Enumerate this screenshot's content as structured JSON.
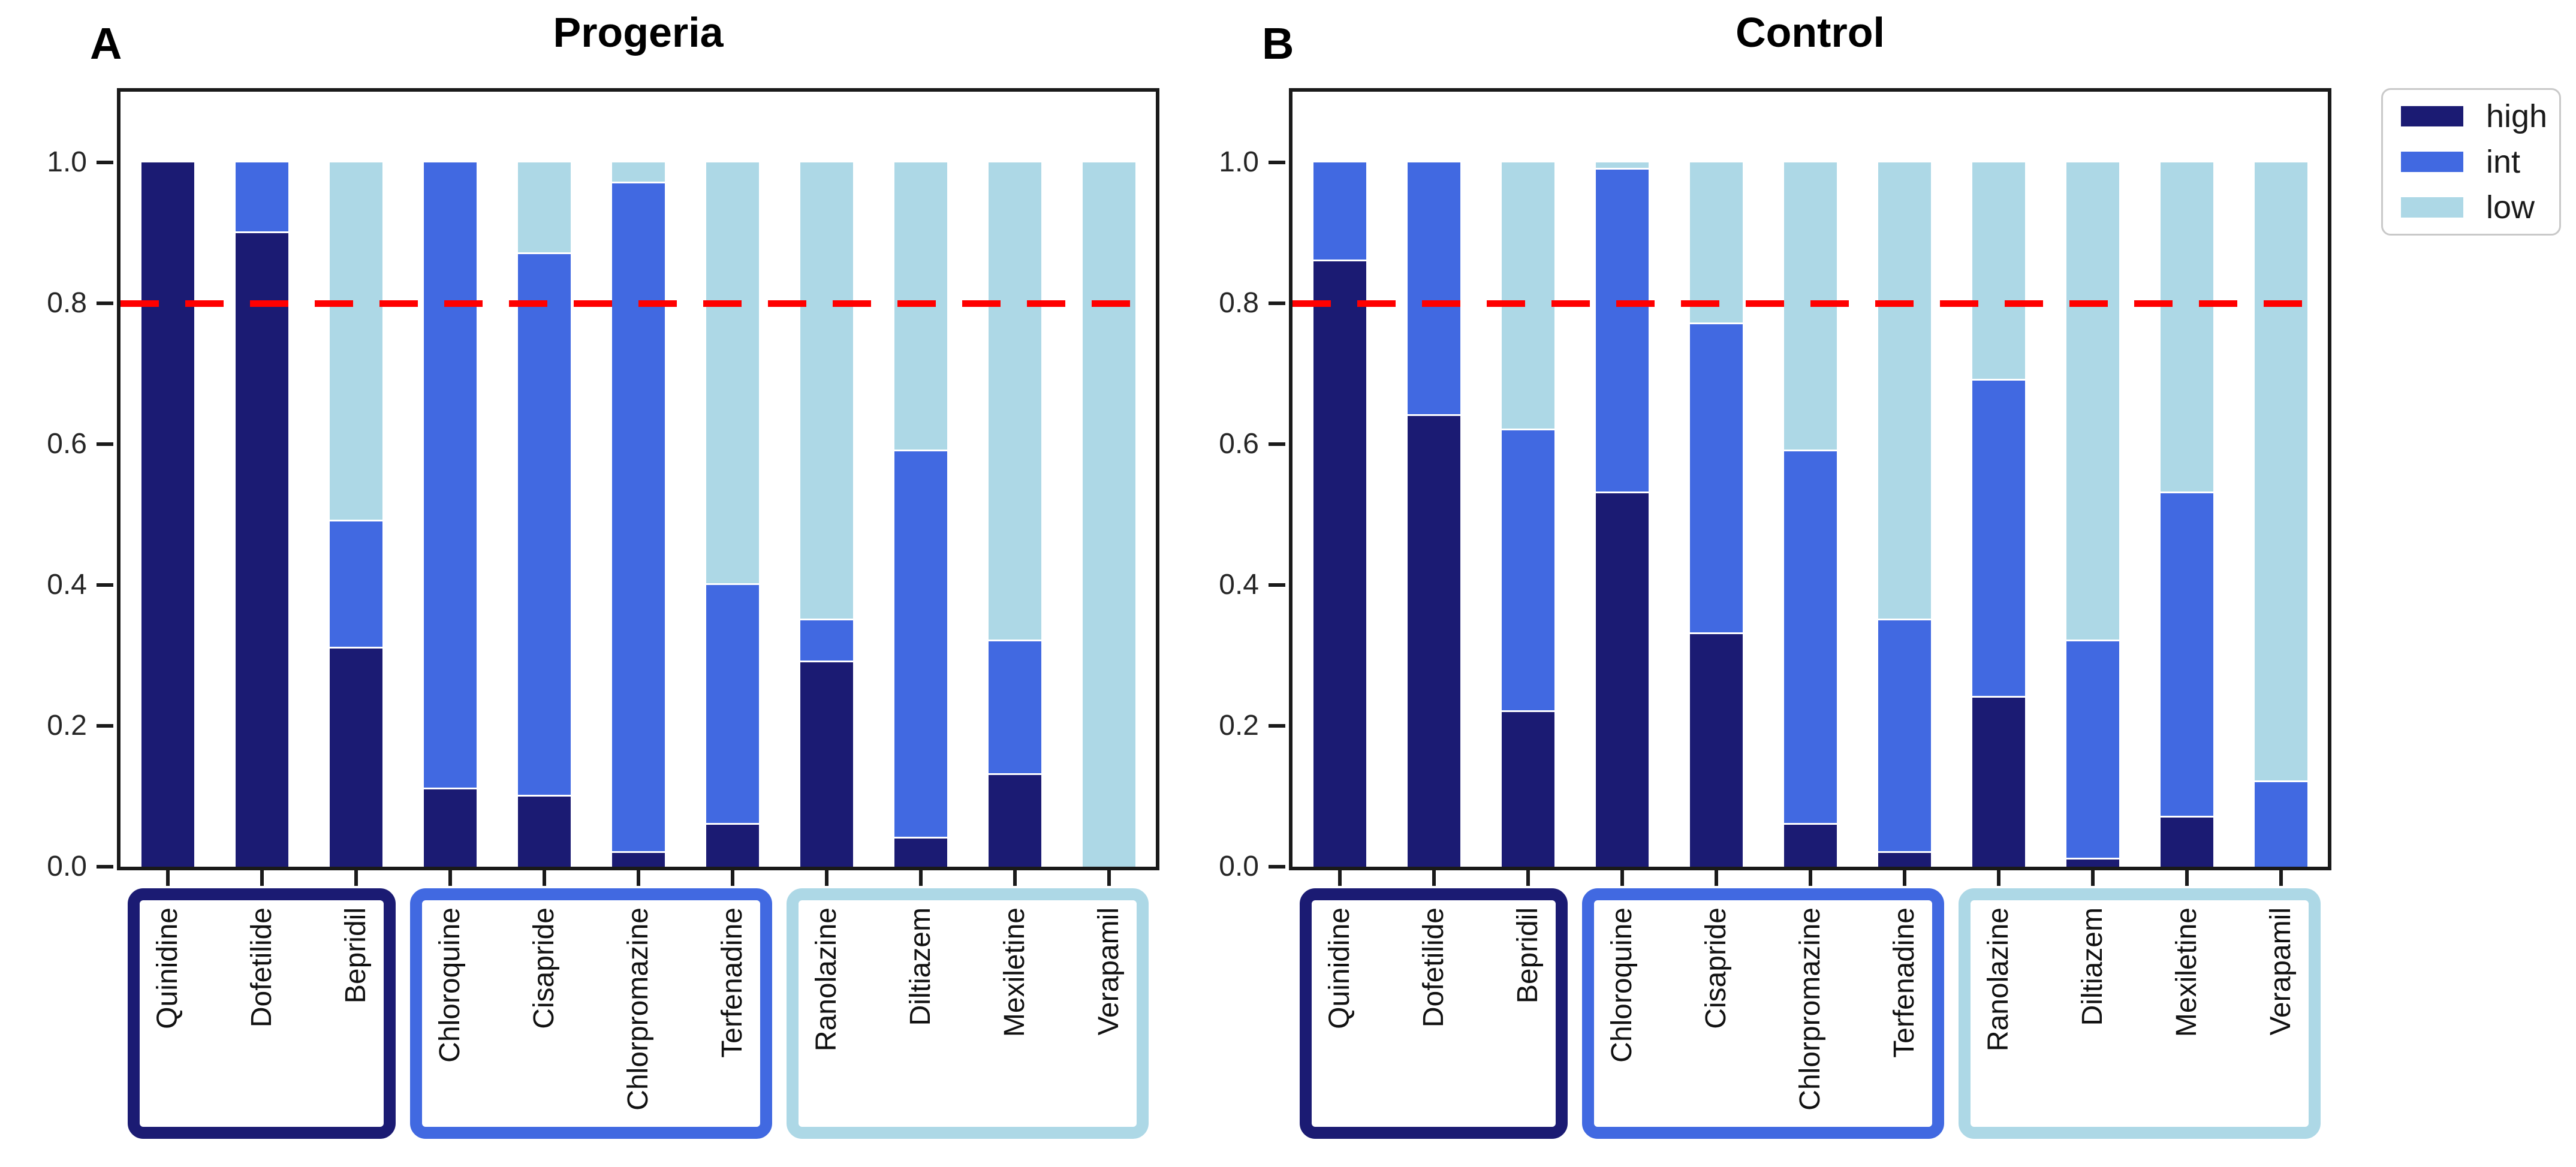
{
  "chart_data": [
    {
      "type": "bar",
      "stacked": true,
      "panel_letter": "A",
      "title": "Progeria",
      "xlabel": "",
      "ylabel": "",
      "ylim": [
        0,
        1.11
      ],
      "grid": false,
      "yticks": [
        "0.0",
        "0.2",
        "0.4",
        "0.6",
        "0.8",
        "1.0"
      ],
      "threshold": 0.8,
      "threshold_color": "#ff0000",
      "categories": [
        "Quinidine",
        "Dofetilide",
        "Bepridil",
        "Chloroquine",
        "Cisapride",
        "Chlorpromazine",
        "Terfenadine",
        "Ranolazine",
        "Diltiazem",
        "Mexiletine",
        "Verapamil"
      ],
      "series": [
        {
          "name": "high",
          "color": "#1b1b73",
          "values": [
            1.0,
            0.9,
            0.31,
            0.11,
            0.1,
            0.02,
            0.06,
            0.29,
            0.04,
            0.13,
            0.0
          ]
        },
        {
          "name": "int",
          "color": "#4169e1",
          "values": [
            0.0,
            0.1,
            0.18,
            0.89,
            0.77,
            0.95,
            0.34,
            0.06,
            0.55,
            0.19,
            0.0
          ]
        },
        {
          "name": "low",
          "color": "#add8e6",
          "values": [
            0.0,
            0.0,
            0.51,
            0.0,
            0.13,
            0.03,
            0.6,
            0.65,
            0.41,
            0.68,
            1.0
          ]
        }
      ],
      "category_groups": [
        {
          "name": "high-risk-drugs",
          "start": 0,
          "count": 3,
          "color": "#1b1b73"
        },
        {
          "name": "int-risk-drugs",
          "start": 3,
          "count": 4,
          "color": "#4169e1"
        },
        {
          "name": "low-risk-drugs",
          "start": 7,
          "count": 4,
          "color": "#add8e6"
        }
      ]
    },
    {
      "type": "bar",
      "stacked": true,
      "panel_letter": "B",
      "title": "Control",
      "xlabel": "",
      "ylabel": "",
      "ylim": [
        0,
        1.11
      ],
      "grid": false,
      "yticks": [
        "0.0",
        "0.2",
        "0.4",
        "0.6",
        "0.8",
        "1.0"
      ],
      "threshold": 0.8,
      "threshold_color": "#ff0000",
      "categories": [
        "Quinidine",
        "Dofetilide",
        "Bepridil",
        "Chloroquine",
        "Cisapride",
        "Chlorpromazine",
        "Terfenadine",
        "Ranolazine",
        "Diltiazem",
        "Mexiletine",
        "Verapamil"
      ],
      "series": [
        {
          "name": "high",
          "color": "#1b1b73",
          "values": [
            0.86,
            0.64,
            0.22,
            0.53,
            0.33,
            0.06,
            0.02,
            0.24,
            0.01,
            0.07,
            0.0
          ]
        },
        {
          "name": "int",
          "color": "#4169e1",
          "values": [
            0.14,
            0.36,
            0.4,
            0.46,
            0.44,
            0.53,
            0.33,
            0.45,
            0.31,
            0.46,
            0.12
          ]
        },
        {
          "name": "low",
          "color": "#add8e6",
          "values": [
            0.0,
            0.0,
            0.38,
            0.01,
            0.23,
            0.41,
            0.65,
            0.31,
            0.68,
            0.47,
            0.88
          ]
        }
      ],
      "category_groups": [
        {
          "name": "high-risk-drugs",
          "start": 0,
          "count": 3,
          "color": "#1b1b73"
        },
        {
          "name": "int-risk-drugs",
          "start": 3,
          "count": 4,
          "color": "#4169e1"
        },
        {
          "name": "low-risk-drugs",
          "start": 7,
          "count": 4,
          "color": "#add8e6"
        }
      ]
    }
  ],
  "legend": {
    "items": [
      {
        "label": "high",
        "color": "#1b1b73"
      },
      {
        "label": "int",
        "color": "#4169e1"
      },
      {
        "label": "low",
        "color": "#add8e6"
      }
    ]
  },
  "colors": {
    "high": "#1b1b73",
    "int": "#4169e1",
    "low": "#add8e6",
    "threshold": "#ff0000",
    "axis": "#1a1a1a"
  }
}
